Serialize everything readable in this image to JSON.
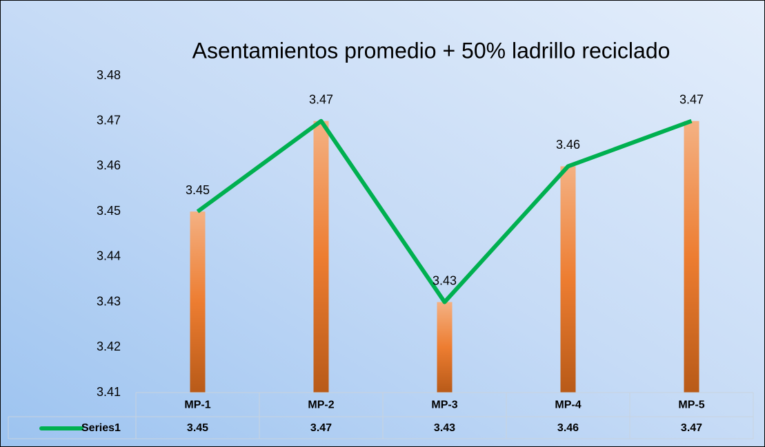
{
  "chart_data": {
    "type": "bar_line",
    "title": "Asentamientos promedio + 50% ladrillo reciclado",
    "categories": [
      "MP-1",
      "MP-2",
      "MP-3",
      "MP-4",
      "MP-5"
    ],
    "series": [
      {
        "name": "Series1",
        "color": "#00b050",
        "values": [
          3.45,
          3.47,
          3.43,
          3.46,
          3.47
        ]
      }
    ],
    "bar_color": "#ed7d31",
    "ylim": [
      3.41,
      3.48
    ],
    "yticks": [
      3.41,
      3.42,
      3.43,
      3.44,
      3.45,
      3.46,
      3.47,
      3.48
    ],
    "data_table": true
  }
}
